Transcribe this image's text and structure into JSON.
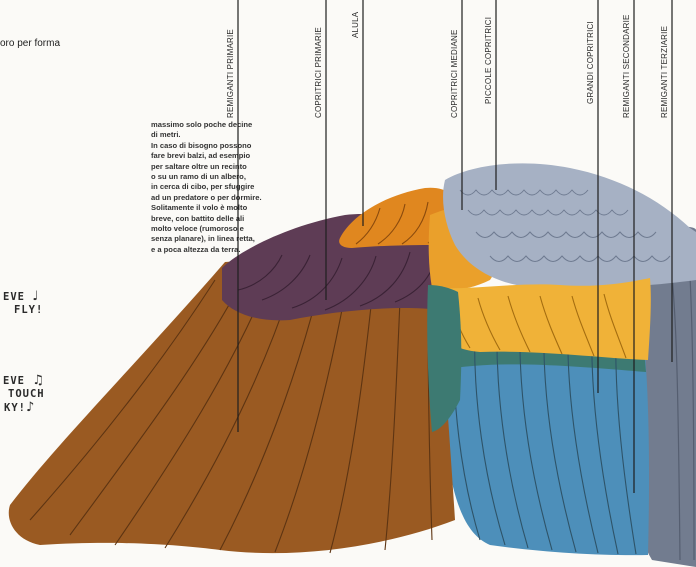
{
  "intro": {
    "top_fragment": "oro per forma"
  },
  "paragraph": {
    "lines": [
      "massimo solo poche decine",
      "di metri.",
      "In caso di bisogno possono",
      "fare brevi balzi, ad esempio",
      "per saltare oltre un recinto",
      "o su un ramo di un albero,",
      "in cerca di cibo, per sfuggire",
      "ad un predatore o per dormire.",
      "Solitamente il volo è molto",
      "breve, con battito delle ali",
      "molto veloce (rumoroso e",
      "senza planare), in linea retta,",
      "e a poca altezza da terra."
    ]
  },
  "handwriting": {
    "block1": [
      "EVE",
      "FLY!"
    ],
    "block2": [
      "EVE",
      "TOUCH",
      "KY!"
    ],
    "notes": [
      "♩",
      "♫",
      "♪"
    ]
  },
  "labels": {
    "remiganti_primarie": "REMIGANTI PRIMARIE",
    "copritrici_primarie": "COPRITRICI PRIMARIE",
    "alula": "ALULA",
    "copritrici_mediane": "COPRITRICI MEDIANE",
    "piccole_copritrici": "PICCOLE COPRITRICI",
    "grandi_copritrici": "GRANDI COPRITRICI",
    "remiganti_secondarie": "REMIGANTI SECONDARIE",
    "remiganti_terziarie": "REMIGANTI TERZIARIE"
  },
  "colors": {
    "primaries": "#9a5a22",
    "primary_coverts": "#5e3c55",
    "alula": "#e0871f",
    "median_coverts": "#eaa02b",
    "lesser_coverts": "#a6b1c4",
    "greater_coverts": "#f0b238",
    "secondaries_teal": "#3d7a72",
    "secondaries_blue": "#4d8fba",
    "tertials": "#727c8f"
  }
}
